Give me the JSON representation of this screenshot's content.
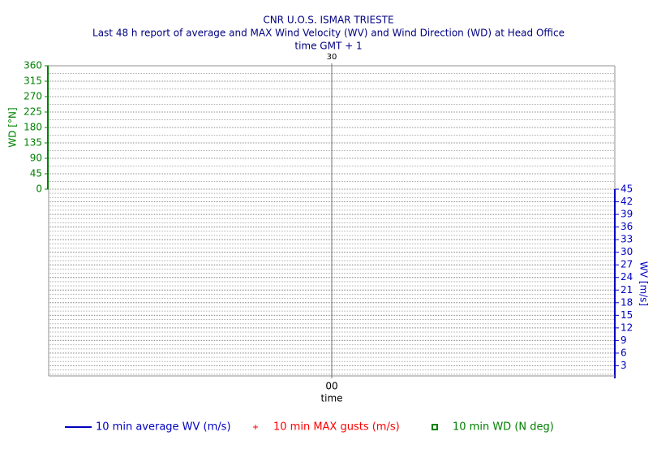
{
  "chart_data": [
    {
      "type": "line",
      "title": "CNR U.O.S. ISMAR TRIESTE",
      "subtitle": [
        "Last 48 h report of average and MAX Wind Velocity (WV) and Wind Direction (WD) at Head Office",
        "time GMT + 1"
      ],
      "ylabel": "WD [°N]",
      "categories": [
        "30"
      ],
      "ylim": [
        0,
        360
      ],
      "yticks": [
        0,
        45,
        90,
        135,
        180,
        225,
        270,
        315,
        360
      ],
      "axis_color": "#008000",
      "grid": true,
      "series": [
        {
          "name": "10 min WD (N deg)",
          "color": "#008000",
          "marker": "square",
          "values": [
            null
          ]
        }
      ]
    },
    {
      "type": "line",
      "ylabel": "WV [m/s]",
      "xlabel": "time",
      "categories": [
        "00"
      ],
      "ylim": [
        0,
        45
      ],
      "yticks": [
        3,
        6,
        9,
        12,
        15,
        18,
        21,
        24,
        27,
        30,
        33,
        36,
        39,
        42,
        45
      ],
      "axis_color": "#0000c0",
      "grid": true,
      "series": [
        {
          "name": "10 min average WV (m/s)",
          "color": "#0000c0",
          "marker": "line",
          "values": [
            null
          ]
        },
        {
          "name": "10 min MAX gusts (m/s)",
          "color": "#ff0000",
          "marker": "plus",
          "values": [
            null
          ]
        }
      ]
    }
  ]
}
